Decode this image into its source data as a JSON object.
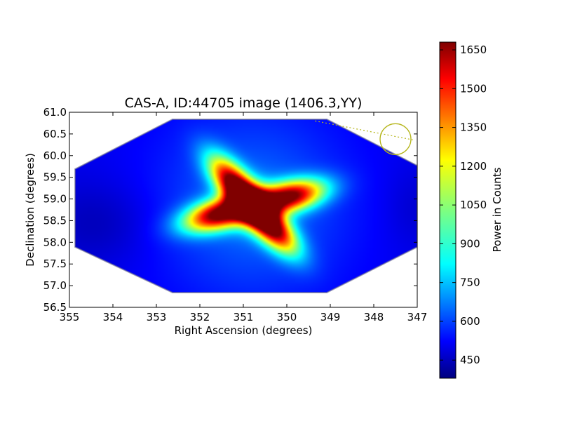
{
  "chart_data": {
    "type": "heatmap",
    "title": "CAS-A, ID:44705 image (1406.3,YY)",
    "xlabel": "Right Ascension (degrees)",
    "ylabel": "Declination (degrees)",
    "xlim": [
      355,
      347
    ],
    "ylim": [
      56.5,
      61.0
    ],
    "x_ticks": [
      "355",
      "354",
      "353",
      "352",
      "351",
      "350",
      "349",
      "348",
      "347"
    ],
    "y_ticks": [
      "56.5",
      "57.0",
      "57.5",
      "58.0",
      "58.5",
      "59.0",
      "59.5",
      "60.0",
      "60.5",
      "61.0"
    ],
    "x_tick_values": [
      355,
      354,
      353,
      352,
      351,
      350,
      349,
      348,
      347
    ],
    "y_tick_values": [
      56.5,
      57.0,
      57.5,
      58.0,
      58.5,
      59.0,
      59.5,
      60.0,
      60.5,
      61.0
    ],
    "grid": false,
    "colormap": "jet",
    "colorbar": {
      "label": "Power in Counts",
      "range": [
        380,
        1680
      ],
      "ticks": [
        "450",
        "600",
        "750",
        "900",
        "1050",
        "1200",
        "1350",
        "1500",
        "1650"
      ],
      "tick_values": [
        450,
        600,
        750,
        900,
        1050,
        1200,
        1350,
        1500,
        1650
      ]
    },
    "background_level": 520,
    "peak_level": 1680,
    "lobes": [
      {
        "ra": 351.18,
        "dec": 59.3,
        "peak": 1620
      },
      {
        "ra": 349.95,
        "dec": 59.05,
        "peak": 1610
      },
      {
        "ra": 351.55,
        "dec": 58.65,
        "peak": 1620
      },
      {
        "ra": 350.4,
        "dec": 58.42,
        "peak": 1680
      }
    ],
    "marker_circle": {
      "ra": 347.5,
      "dec": 60.38,
      "color": "#b5b51a"
    },
    "dotted_line": {
      "from": {
        "ra": 349.35,
        "dec": 60.8
      },
      "to": {
        "ra": 347.08,
        "dec": 60.36
      },
      "color": "#b5b51a"
    }
  }
}
